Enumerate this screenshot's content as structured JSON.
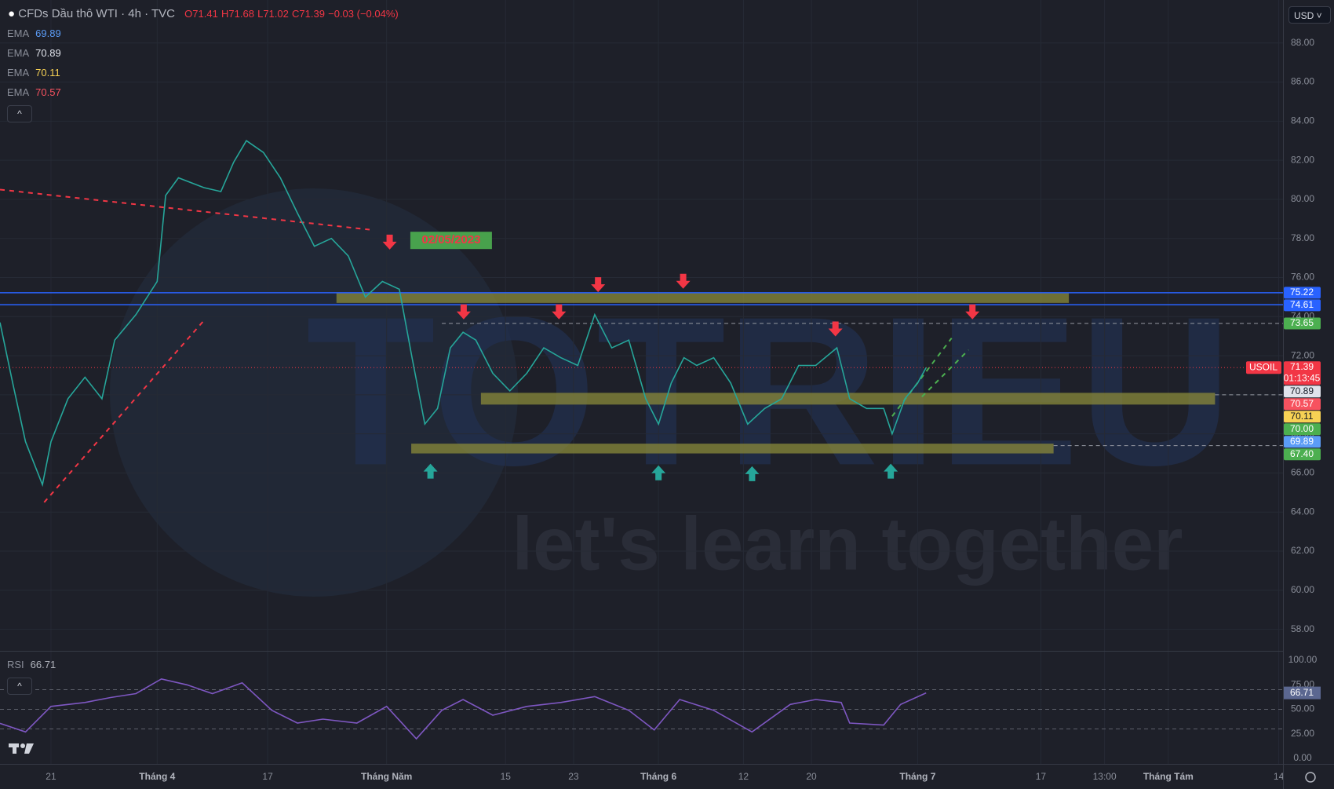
{
  "header": {
    "symbol": "CFDs Dầu thô WTI · 4h · TVC",
    "open": "O71.41",
    "high": "H71.68",
    "low": "L71.02",
    "close": "C71.39",
    "change": "−0.03 (−0.04%)"
  },
  "indicators": [
    {
      "name": "EMA",
      "value": "69.89",
      "color": "#5b9cf6"
    },
    {
      "name": "EMA",
      "value": "70.89",
      "color": "#e0e3eb"
    },
    {
      "name": "EMA",
      "value": "70.11",
      "color": "#f7d154"
    },
    {
      "name": "EMA",
      "value": "70.57",
      "color": "#f7525f"
    }
  ],
  "currency": "USD",
  "watermark": {
    "brand": "TOTRIEU",
    "slogan": "let's learn together"
  },
  "chart_data": [
    {
      "type": "line",
      "xlim": [
        0,
        302
      ],
      "ylim": [
        56.9,
        90.2
      ],
      "yticks": [
        {
          "value": 58,
          "label": "58.00"
        },
        {
          "value": 60,
          "label": "60.00"
        },
        {
          "value": 62,
          "label": "62.00"
        },
        {
          "value": 64,
          "label": "64.00"
        },
        {
          "value": 66,
          "label": "66.00"
        },
        {
          "value": 68,
          "label": "68.00"
        },
        {
          "value": 70,
          "label": "70.00"
        },
        {
          "value": 72,
          "label": "72.00"
        },
        {
          "value": 74,
          "label": "74.00"
        },
        {
          "value": 76,
          "label": "76.00"
        },
        {
          "value": 78,
          "label": "78.00"
        },
        {
          "value": 80,
          "label": "80.00"
        },
        {
          "value": 82,
          "label": "82.00"
        },
        {
          "value": 84,
          "label": "84.00"
        },
        {
          "value": 86,
          "label": "86.00"
        },
        {
          "value": 88,
          "label": "88.00"
        }
      ],
      "xticks": [
        {
          "value": 12,
          "label": "21"
        },
        {
          "value": 37,
          "label": "Tháng 4"
        },
        {
          "value": 63,
          "label": "17"
        },
        {
          "value": 91,
          "label": "Tháng Năm"
        },
        {
          "value": 119,
          "label": "15"
        },
        {
          "value": 135,
          "label": "23"
        },
        {
          "value": 155,
          "label": "Tháng 6"
        },
        {
          "value": 175,
          "label": "12"
        },
        {
          "value": 191,
          "label": "20"
        },
        {
          "value": 216,
          "label": "Tháng 7"
        },
        {
          "value": 245,
          "label": "17"
        },
        {
          "value": 260,
          "label": "13:00"
        },
        {
          "value": 275,
          "label": "Tháng Tám"
        },
        {
          "value": 301,
          "label": "14"
        }
      ],
      "grid": true,
      "x": [
        0,
        3,
        6,
        10,
        12,
        16,
        20,
        24,
        27,
        32,
        37,
        39,
        42,
        48,
        52,
        55,
        58,
        62,
        66,
        70,
        74,
        78,
        82,
        86,
        90,
        94,
        97,
        100,
        103,
        106,
        109,
        112,
        116,
        120,
        124,
        128,
        132,
        136,
        140,
        144,
        148,
        152,
        155,
        158,
        161,
        164,
        168,
        172,
        176,
        180,
        184,
        188,
        192,
        197,
        200,
        204,
        208,
        210,
        213,
        216,
        218
      ],
      "series": [
        {
          "name": "USOIL",
          "color": "#26a69a",
          "values": [
            73.7,
            70.6,
            67.6,
            65.4,
            67.6,
            69.8,
            70.9,
            69.8,
            72.8,
            74.1,
            75.8,
            80.2,
            81.1,
            80.6,
            80.4,
            81.9,
            83.0,
            82.4,
            81.1,
            79.3,
            77.6,
            78.0,
            77.1,
            75.0,
            75.8,
            75.4,
            71.9,
            68.5,
            69.3,
            72.4,
            73.2,
            72.8,
            71.1,
            70.2,
            71.1,
            72.4,
            71.9,
            71.5,
            74.1,
            72.4,
            72.8,
            69.8,
            68.5,
            70.6,
            71.9,
            71.5,
            71.9,
            70.6,
            68.5,
            69.3,
            69.8,
            71.5,
            71.5,
            72.4,
            69.8,
            69.3,
            69.3,
            68.0,
            69.8,
            70.6,
            71.39
          ]
        }
      ],
      "levels": [
        {
          "value": 75.22,
          "label": "75.22",
          "color": "#2962ff",
          "style": "solid",
          "from": 0
        },
        {
          "value": 74.61,
          "label": "74.61",
          "color": "#2962ff",
          "style": "solid",
          "from": 0
        },
        {
          "value": 73.65,
          "label": "73.65",
          "color": "#4caf50",
          "style": "dashed",
          "from": 104
        },
        {
          "value": 71.39,
          "label": "71.39",
          "color": "#f23645",
          "style": "dotted",
          "from": 0,
          "countdown": "01:13:45"
        },
        {
          "value": 70.89,
          "label": "70.89",
          "color": "#e0e3eb",
          "style": "none",
          "from": 0
        },
        {
          "value": 70.57,
          "label": "70.57",
          "color": "#f7525f",
          "style": "none",
          "from": 0
        },
        {
          "value": 70.11,
          "label": "70.11",
          "color": "#f7d154",
          "style": "none",
          "from": 0
        },
        {
          "value": 70.0,
          "label": "70.00",
          "color": "#4caf50",
          "style": "dashed",
          "from": 286
        },
        {
          "value": 69.89,
          "label": "69.89",
          "color": "#5b9cf6",
          "style": "none",
          "from": 0
        },
        {
          "value": 67.4,
          "label": "67.40",
          "color": "#4caf50",
          "style": "dashed",
          "from": 248
        }
      ],
      "zones": [
        {
          "x0": 79.2,
          "x1": 251.6,
          "y0": 74.7,
          "y1": 75.2,
          "color": "#8a8a3a"
        },
        {
          "x0": 113.2,
          "x1": 286,
          "y0": 69.5,
          "y1": 70.1,
          "color": "#8a8a3a"
        },
        {
          "x0": 96.8,
          "x1": 248,
          "y0": 67.0,
          "y1": 67.5,
          "color": "#8a8a3a"
        }
      ],
      "trendlines": [
        {
          "x0": 0,
          "y0": 80.5,
          "x1": 87,
          "y1": 78.45,
          "color": "#f23645"
        },
        {
          "x0": 10.4,
          "y0": 64.5,
          "x1": 48,
          "y1": 73.8,
          "color": "#f23645"
        },
        {
          "x0": 210,
          "y0": 68.9,
          "x1": 224,
          "y1": 72.9,
          "color": "#4caf50"
        },
        {
          "x0": 217,
          "y0": 69.9,
          "x1": 228,
          "y1": 72.3,
          "color": "#4caf50"
        }
      ],
      "annotation": {
        "text": "02/05/2023",
        "x": 94,
        "y": 77.9
      }
    },
    {
      "type": "line",
      "title": "RSI",
      "last": {
        "value": 66.71,
        "label": "66.71"
      },
      "xlim": [
        0,
        302
      ],
      "ylim": [
        -5.6,
        108.8
      ],
      "yticks": [
        {
          "value": 0,
          "label": "0.00"
        },
        {
          "value": 25,
          "label": "25.00"
        },
        {
          "value": 50,
          "label": "50.00"
        },
        {
          "value": 75,
          "label": "75.00"
        },
        {
          "value": 100,
          "label": "100.00"
        }
      ],
      "bands": [
        70,
        50,
        30
      ],
      "x": [
        0,
        6,
        12,
        20,
        26,
        32,
        38,
        44,
        50,
        57,
        64,
        70,
        76,
        84,
        91,
        98,
        104,
        109,
        116,
        124,
        132,
        140,
        148,
        154,
        160,
        168,
        177,
        186,
        192,
        198,
        200,
        208,
        212,
        218
      ],
      "series": [
        {
          "name": "RSI",
          "color": "#7e57c2",
          "values": [
            35.7,
            27,
            53,
            57,
            62,
            66,
            81,
            75,
            66,
            77,
            49,
            36,
            40,
            36,
            53,
            20,
            49,
            60,
            44,
            53,
            57,
            63,
            49,
            29,
            60,
            49,
            27,
            55,
            60,
            57,
            36,
            34,
            55,
            66.71
          ]
        }
      ]
    }
  ]
}
